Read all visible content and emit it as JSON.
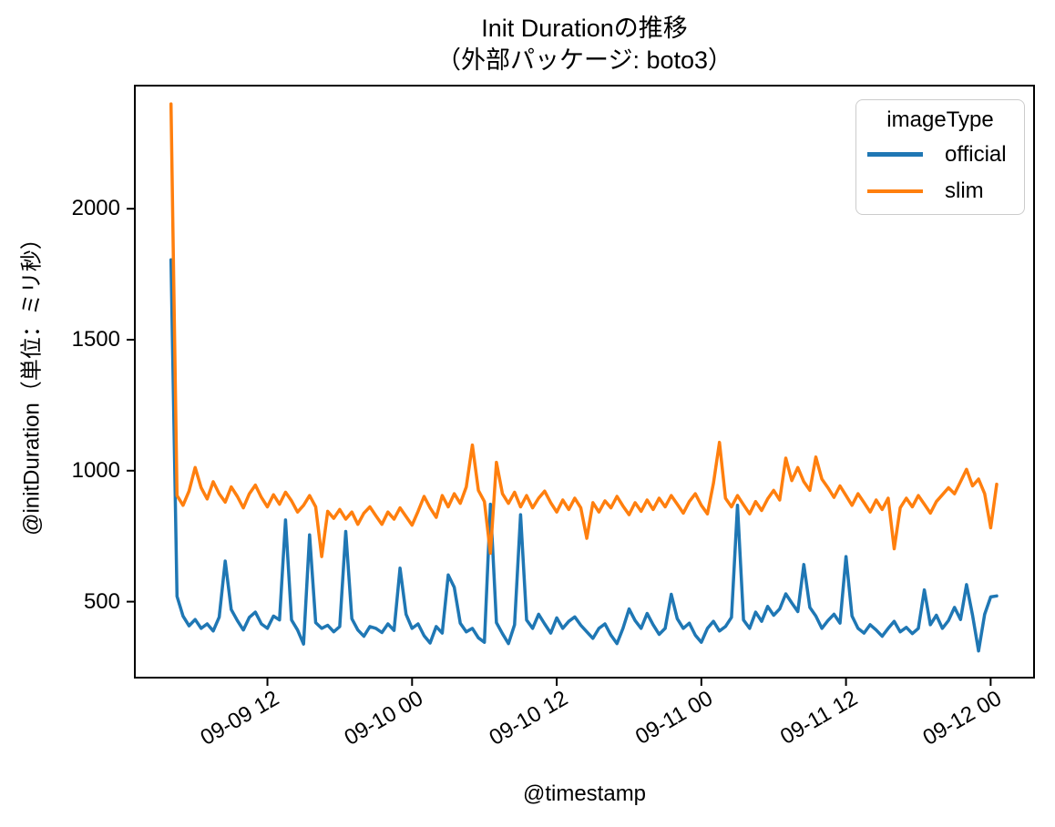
{
  "figure": {
    "title_line1": "Init Durationの推移",
    "title_line2": "（外部パッケージ: boto3）",
    "x_label": "@timestamp",
    "y_label": "@initDuration（単位：ミリ秒）",
    "background_color": "#ffffff",
    "text_color": "#000000",
    "spine_color": "#000000"
  },
  "legend": {
    "title": "imageType"
  },
  "chart_data": {
    "type": "line",
    "title": "Init Durationの推移（外部パッケージ: boto3）",
    "xlabel": "@timestamp",
    "ylabel": "@initDuration（単位：ミリ秒）",
    "grid": false,
    "legend_position": "upper right",
    "x_unit": "hours",
    "x_start": 0,
    "x_step": 0.5,
    "xlim": [
      -3.0,
      71.6
    ],
    "ylim": [
      210,
      2470
    ],
    "y_ticks": [
      500,
      1000,
      1500,
      2000
    ],
    "x_ticks": [
      {
        "hours": 8,
        "label": "09-09 12"
      },
      {
        "hours": 20,
        "label": "09-10 00"
      },
      {
        "hours": 32,
        "label": "09-10 12"
      },
      {
        "hours": 44,
        "label": "09-11 00"
      },
      {
        "hours": 56,
        "label": "09-11 12"
      },
      {
        "hours": 68,
        "label": "09-12 00"
      }
    ],
    "series": [
      {
        "name": "official",
        "color": "#1f77b4",
        "values": [
          1805,
          520,
          445,
          408,
          432,
          398,
          415,
          388,
          441,
          655,
          470,
          428,
          392,
          440,
          460,
          415,
          398,
          445,
          430,
          812,
          430,
          392,
          338,
          755,
          420,
          398,
          410,
          385,
          405,
          768,
          435,
          392,
          368,
          405,
          398,
          382,
          415,
          390,
          628,
          452,
          398,
          415,
          370,
          342,
          405,
          380,
          602,
          555,
          418,
          385,
          398,
          362,
          345,
          872,
          420,
          378,
          340,
          412,
          832,
          430,
          398,
          452,
          415,
          380,
          438,
          398,
          425,
          442,
          410,
          385,
          360,
          398,
          415,
          372,
          340,
          398,
          472,
          428,
          398,
          455,
          412,
          375,
          398,
          528,
          435,
          398,
          418,
          372,
          345,
          398,
          425,
          388,
          405,
          440,
          868,
          430,
          398,
          460,
          425,
          482,
          448,
          472,
          530,
          495,
          462,
          642,
          478,
          445,
          398,
          428,
          452,
          418,
          672,
          445,
          398,
          380,
          412,
          392,
          368,
          398,
          425,
          385,
          402,
          378,
          398,
          545,
          412,
          448,
          398,
          428,
          478,
          432,
          565,
          448,
          312,
          452,
          518,
          522
        ]
      },
      {
        "name": "slim",
        "color": "#ff7f0e",
        "values": [
          2400,
          905,
          868,
          922,
          1012,
          935,
          892,
          958,
          912,
          880,
          938,
          902,
          858,
          912,
          945,
          898,
          862,
          908,
          872,
          918,
          885,
          842,
          868,
          905,
          862,
          672,
          845,
          818,
          852,
          815,
          842,
          795,
          838,
          862,
          828,
          795,
          842,
          815,
          858,
          825,
          792,
          845,
          902,
          858,
          822,
          905,
          862,
          912,
          875,
          938,
          1098,
          925,
          882,
          685,
          1032,
          912,
          875,
          918,
          862,
          905,
          858,
          895,
          922,
          878,
          842,
          888,
          852,
          895,
          858,
          742,
          878,
          842,
          885,
          858,
          902,
          865,
          832,
          878,
          845,
          888,
          852,
          895,
          862,
          905,
          872,
          838,
          882,
          912,
          868,
          835,
          952,
          1108,
          895,
          862,
          905,
          870,
          835,
          882,
          848,
          892,
          925,
          888,
          1048,
          962,
          1012,
          958,
          925,
          1052,
          968,
          935,
          898,
          942,
          905,
          868,
          912,
          878,
          842,
          888,
          852,
          895,
          702,
          858,
          895,
          862,
          905,
          872,
          838,
          882,
          908,
          935,
          912,
          958,
          1005,
          942,
          968,
          912,
          782,
          948
        ]
      }
    ]
  }
}
